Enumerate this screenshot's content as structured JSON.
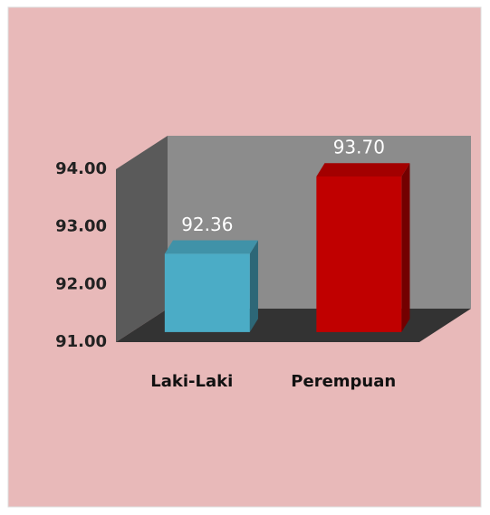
{
  "chart_data": {
    "type": "bar3d",
    "categories": [
      "Laki-Laki",
      "Perempuan"
    ],
    "values": [
      92.36,
      93.7
    ],
    "value_labels": [
      "92.36",
      "93.70"
    ],
    "colors": [
      "#4bacc6",
      "#c00000"
    ],
    "ylim": [
      91,
      94
    ],
    "yticks": [
      {
        "value": 91,
        "label": "91.00"
      },
      {
        "value": 92,
        "label": "92.00"
      },
      {
        "value": 93,
        "label": "93.00"
      },
      {
        "value": 94,
        "label": "94.00"
      }
    ]
  }
}
